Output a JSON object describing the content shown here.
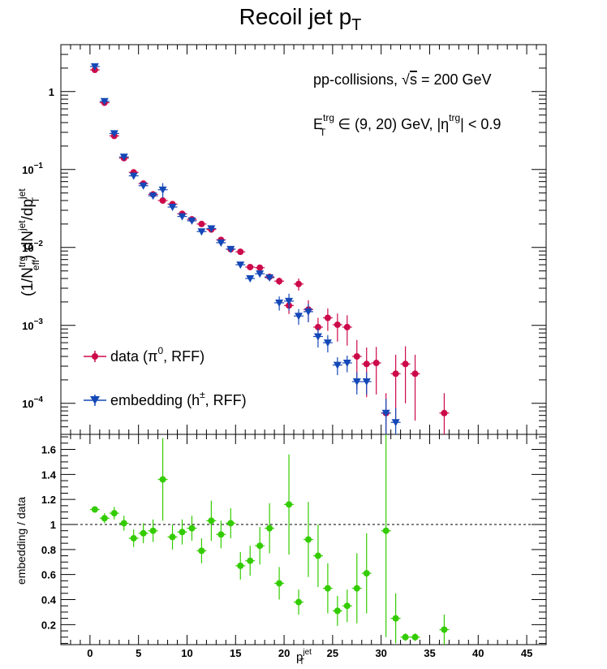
{
  "title": {
    "main": "Recoil jet p",
    "sub": "T"
  },
  "annotations": {
    "line1": {
      "pre": "pp-collisions, ",
      "sqrt": "√",
      "s": "s",
      "post": " = 200 GeV"
    },
    "line2": {
      "E": "E",
      "E_sup": "trg",
      "E_sub": "T",
      "mid": " ∈ (9, 20) GeV, |η",
      "eta_sup": "trg",
      "end": "| < 0.9"
    }
  },
  "legend": {
    "data": {
      "pre": "data (π",
      "sup": "0",
      "post": ", RFF)"
    },
    "embedding": {
      "pre": "embedding (h",
      "sup": "±",
      "post": ", RFF)"
    }
  },
  "top_ylabel": {
    "a": "(1/N",
    "a_sup": "trg",
    "a_sub": "eff",
    "b": ") dN",
    "b_sup": "jet",
    "c": "/dp",
    "c_sup": "jet",
    "c_sub": "T"
  },
  "bottom_ylabel": "embedding / data",
  "xlabel": {
    "base": "p",
    "sup": "jet",
    "sub": "T"
  },
  "top_yticks": [
    {
      "value": 1,
      "label": "1"
    },
    {
      "value": 0.1,
      "label": "10",
      "sup": "−1"
    },
    {
      "value": 0.01,
      "label": "10",
      "sup": "−2"
    },
    {
      "value": 0.001,
      "label": "10",
      "sup": "−3"
    },
    {
      "value": 0.0001,
      "label": "10",
      "sup": "−4"
    }
  ],
  "bottom_yticks": [
    "0.2",
    "0.4",
    "0.6",
    "0.8",
    "1",
    "1.2",
    "1.4",
    "1.6"
  ],
  "xticks": [
    "0",
    "5",
    "10",
    "15",
    "20",
    "25",
    "30",
    "35",
    "40",
    "45"
  ],
  "chart_data": {
    "type": "scatter",
    "xlim": [
      -3,
      47
    ],
    "top": {
      "yscale": "log",
      "ylim": [
        4e-05,
        4
      ],
      "series": [
        {
          "name": "data (π0, RFF)",
          "color": "#cc0a4a",
          "marker": "circle",
          "points": [
            [
              0.5,
              1.9,
              0
            ],
            [
              1.5,
              0.72,
              0
            ],
            [
              2.5,
              0.27,
              0
            ],
            [
              3.5,
              0.14,
              0
            ],
            [
              4.5,
              0.092,
              0
            ],
            [
              5.5,
              0.066,
              0
            ],
            [
              6.5,
              0.048,
              0
            ],
            [
              7.5,
              0.04,
              0
            ],
            [
              8.5,
              0.036,
              0
            ],
            [
              9.5,
              0.027,
              0
            ],
            [
              10.5,
              0.023,
              0
            ],
            [
              11.5,
              0.02,
              0
            ],
            [
              12.5,
              0.017,
              0
            ],
            [
              13.5,
              0.0125,
              0
            ],
            [
              14.5,
              0.0095,
              0
            ],
            [
              15.5,
              0.0088,
              0
            ],
            [
              16.5,
              0.0056,
              0
            ],
            [
              17.5,
              0.0055,
              0
            ],
            [
              18.5,
              0.0042,
              0
            ],
            [
              19.5,
              0.0037,
              0.0004
            ],
            [
              20.5,
              0.0018,
              0.0004
            ],
            [
              21.5,
              0.0034,
              0.0006
            ],
            [
              22.5,
              0.0016,
              0.0005
            ],
            [
              23.5,
              0.00095,
              0.0003
            ],
            [
              24.5,
              0.00125,
              0.0004
            ],
            [
              25.5,
              0.00102,
              0.0004
            ],
            [
              26.5,
              0.00095,
              0.0004
            ],
            [
              27.5,
              0.0004,
              0.00025
            ],
            [
              28.5,
              0.00032,
              0.0002
            ],
            [
              29.5,
              0.00033,
              0.0002
            ],
            [
              30.5,
              7.5e-05,
              6e-05
            ],
            [
              31.5,
              0.00024,
              0.00018
            ],
            [
              32.5,
              0.00032,
              0.00022
            ],
            [
              33.5,
              0.00024,
              0.00018
            ],
            [
              36.5,
              7.5e-05,
              6e-05
            ]
          ]
        },
        {
          "name": "embedding (h±, RFF)",
          "color": "#1448b8",
          "marker": "triangle-down",
          "points": [
            [
              0.5,
              2.1,
              0
            ],
            [
              1.5,
              0.75,
              0
            ],
            [
              2.5,
              0.29,
              0
            ],
            [
              3.5,
              0.145,
              0
            ],
            [
              4.5,
              0.083,
              0
            ],
            [
              5.5,
              0.062,
              0
            ],
            [
              6.5,
              0.046,
              0
            ],
            [
              7.5,
              0.055,
              0.012
            ],
            [
              8.5,
              0.033,
              0
            ],
            [
              9.5,
              0.025,
              0
            ],
            [
              10.5,
              0.022,
              0
            ],
            [
              11.5,
              0.016,
              0
            ],
            [
              12.5,
              0.0175,
              0
            ],
            [
              13.5,
              0.0115,
              0
            ],
            [
              14.5,
              0.0095,
              0
            ],
            [
              15.5,
              0.006,
              0
            ],
            [
              16.5,
              0.004,
              0
            ],
            [
              17.5,
              0.0046,
              0
            ],
            [
              18.5,
              0.0041,
              0
            ],
            [
              19.5,
              0.00195,
              0.0004
            ],
            [
              20.5,
              0.00205,
              0.0005
            ],
            [
              21.5,
              0.00132,
              0.0003
            ],
            [
              22.5,
              0.0015,
              0.0004
            ],
            [
              23.5,
              0.00072,
              0.0002
            ],
            [
              24.5,
              0.0006,
              0.00015
            ],
            [
              25.5,
              0.00031,
              8e-05
            ],
            [
              26.5,
              0.00033,
              8e-05
            ],
            [
              27.5,
              0.00019,
              6e-05
            ],
            [
              28.5,
              0.00019,
              6e-05
            ],
            [
              30.5,
              7.5e-05,
              4e-05
            ],
            [
              31.5,
              5.7e-05,
              3e-05
            ]
          ]
        }
      ]
    },
    "bottom": {
      "yscale": "linear",
      "ylim": [
        0.04,
        1.72
      ],
      "reference_line": 1,
      "series": [
        {
          "name": "embedding / data",
          "color": "#33cc00",
          "marker": "circle",
          "points": [
            [
              0.5,
              1.12,
              0.02
            ],
            [
              1.5,
              1.05,
              0.04
            ],
            [
              2.5,
              1.09,
              0.05
            ],
            [
              3.5,
              1.01,
              0.06
            ],
            [
              4.5,
              0.89,
              0.07
            ],
            [
              5.5,
              0.93,
              0.08
            ],
            [
              6.5,
              0.95,
              0.09
            ],
            [
              7.5,
              1.36,
              0.33
            ],
            [
              8.5,
              0.9,
              0.1
            ],
            [
              9.5,
              0.94,
              0.1
            ],
            [
              10.5,
              0.97,
              0.1
            ],
            [
              11.5,
              0.79,
              0.1
            ],
            [
              12.5,
              1.03,
              0.16
            ],
            [
              13.5,
              0.92,
              0.11
            ],
            [
              14.5,
              1.01,
              0.12
            ],
            [
              15.5,
              0.67,
              0.11
            ],
            [
              16.5,
              0.71,
              0.12
            ],
            [
              17.5,
              0.83,
              0.15
            ],
            [
              18.5,
              0.97,
              0.2
            ],
            [
              19.5,
              0.53,
              0.13
            ],
            [
              20.5,
              1.16,
              0.4
            ],
            [
              21.5,
              0.38,
              0.1
            ],
            [
              22.5,
              0.88,
              0.3
            ],
            [
              23.5,
              0.75,
              0.25
            ],
            [
              24.5,
              0.49,
              0.2
            ],
            [
              25.5,
              0.31,
              0.12
            ],
            [
              26.5,
              0.35,
              0.13
            ],
            [
              27.5,
              0.49,
              0.28
            ],
            [
              28.5,
              0.61,
              0.32
            ],
            [
              30.5,
              0.95,
              0.85
            ],
            [
              31.5,
              0.25,
              0.2
            ],
            [
              32.5,
              0.1,
              0.03
            ],
            [
              33.5,
              0.1,
              0.03
            ],
            [
              36.5,
              0.16,
              0.12
            ]
          ]
        }
      ]
    }
  }
}
